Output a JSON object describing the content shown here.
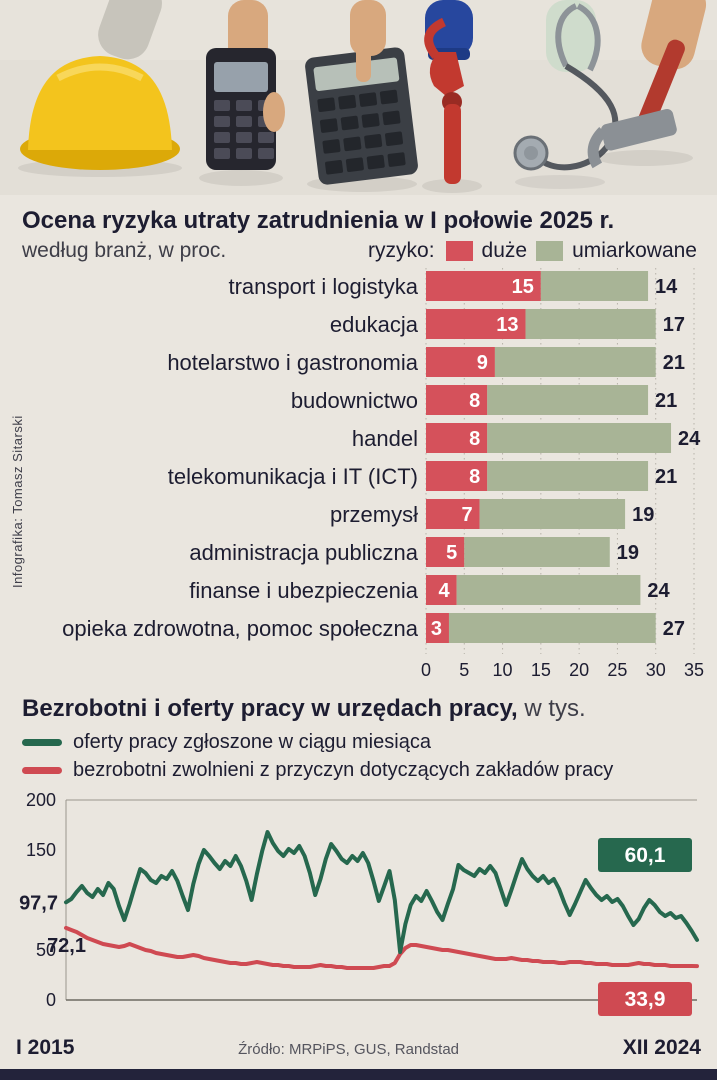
{
  "credit": "Infografika: Tomasz Sitarski",
  "photos": {
    "items": [
      "hard-hat",
      "payment-terminal",
      "calculator",
      "pipe-wrench",
      "stethoscope",
      "hammer"
    ]
  },
  "colors": {
    "background": "#eae6df",
    "text_dark": "#1d1d31",
    "risk_high": "#d5515b",
    "risk_moderate": "#a8b496",
    "line_offers": "#26684e",
    "line_dismissed": "#cf4a52",
    "grid_dotted": "#b6b2a8",
    "footer_bar": "#23233b"
  },
  "section_risk": {
    "title": "Ocena ryzyka utraty zatrudnienia w I połowie 2025 r.",
    "subtitle": "według branż, w proc.",
    "legend_label": "ryzyko:"
  },
  "section_jobs": {
    "title_bold": "Bezrobotni i oferty pracy w urzędach pracy,",
    "title_light": " w tys.",
    "source": "Źródło: MRPiPS, GUS, Randstad"
  },
  "chart_data": [
    {
      "type": "bar",
      "orientation": "horizontal",
      "stacked": true,
      "title": "Ocena ryzyka utraty zatrudnienia w I połowie 2025 r.",
      "subtitle": "według branż, w proc.",
      "categories": [
        "transport i logistyka",
        "edukacja",
        "hotelarstwo i gastronomia",
        "budownictwo",
        "handel",
        "telekomunikacja i IT (ICT)",
        "przemysł",
        "administracja publiczna",
        "finanse i ubezpieczenia",
        "opieka zdrowotna, pomoc społeczna"
      ],
      "series": [
        {
          "name": "duże",
          "color": "#d5515b",
          "values": [
            15,
            13,
            9,
            8,
            8,
            8,
            7,
            5,
            4,
            3
          ]
        },
        {
          "name": "umiarkowane",
          "color": "#a8b496",
          "values": [
            14,
            17,
            21,
            21,
            24,
            21,
            19,
            19,
            24,
            27
          ]
        }
      ],
      "xlim": [
        0,
        35
      ],
      "xticks": [
        0,
        5,
        10,
        15,
        20,
        25,
        30,
        35
      ],
      "grid": "dotted-vertical",
      "value_label_style": "high-inside-white, moderate-after-bar-dark"
    },
    {
      "type": "line",
      "title": "Bezrobotni i oferty pracy w urzędach pracy, w tys.",
      "ylim": [
        0,
        200
      ],
      "yticks": [
        0,
        50,
        100,
        150,
        200
      ],
      "yticks_hidden": [
        100
      ],
      "x_start": "I 2015",
      "x_end": "XII 2024",
      "legend_position": "top-left",
      "grid": "frame-only",
      "series": [
        {
          "name": "oferty pracy zgłoszone w ciągu miesiąca",
          "color": "#26684e",
          "start_value": 97.7,
          "end_value": 60.1,
          "start_label": "97,7",
          "end_label": "60,1",
          "values": [
            97.7,
            101,
            108,
            114,
            107,
            103,
            111,
            105,
            117,
            111,
            94,
            80,
            96,
            114,
            131,
            127,
            120,
            117,
            124,
            121,
            129,
            119,
            104,
            90,
            116,
            136,
            150,
            144,
            137,
            131,
            139,
            134,
            144,
            134,
            119,
            100,
            126,
            149,
            168,
            157,
            149,
            144,
            151,
            147,
            154,
            144,
            127,
            105,
            121,
            141,
            156,
            149,
            141,
            137,
            144,
            139,
            147,
            137,
            119,
            99,
            114,
            129,
            100,
            48,
            76,
            95,
            104,
            99,
            109,
            99,
            88,
            80,
            96,
            111,
            135,
            130,
            127,
            124,
            131,
            127,
            134,
            127,
            111,
            95,
            110,
            126,
            141,
            131,
            124,
            119,
            124,
            117,
            121,
            111,
            97,
            85,
            96,
            108,
            120,
            112,
            105,
            100,
            104,
            98,
            101,
            94,
            84,
            75,
            81,
            92,
            100,
            95,
            88,
            84,
            87,
            82,
            84,
            77,
            69,
            60.1
          ]
        },
        {
          "name": "bezrobotni zwolnieni z przyczyn dotyczących zakładów pracy",
          "color": "#cf4a52",
          "start_value": 72.1,
          "end_value": 33.9,
          "start_label": "72,1",
          "end_label": "33,9",
          "values": [
            72.1,
            70,
            68,
            65,
            62,
            60,
            58,
            56,
            55,
            54,
            53,
            54,
            56,
            54,
            52,
            50,
            49,
            47,
            46,
            45,
            44,
            43,
            43,
            44,
            45,
            44,
            42,
            41,
            40,
            39,
            38,
            37,
            37,
            36,
            36,
            37,
            38,
            37,
            36,
            35,
            35,
            34,
            34,
            33,
            33,
            33,
            33,
            34,
            35,
            34,
            34,
            33,
            33,
            32,
            32,
            32,
            32,
            32,
            32,
            33,
            34,
            34,
            37,
            46,
            52,
            55,
            55,
            54,
            53,
            52,
            51,
            50,
            50,
            49,
            48,
            47,
            46,
            45,
            44,
            43,
            42,
            41,
            41,
            41,
            42,
            41,
            40,
            40,
            39,
            39,
            38,
            38,
            38,
            37,
            37,
            38,
            38,
            38,
            37,
            37,
            36,
            36,
            36,
            35,
            35,
            35,
            35,
            36,
            37,
            36,
            36,
            35,
            35,
            35,
            34,
            34,
            34,
            34,
            34,
            33.9
          ]
        }
      ]
    }
  ]
}
